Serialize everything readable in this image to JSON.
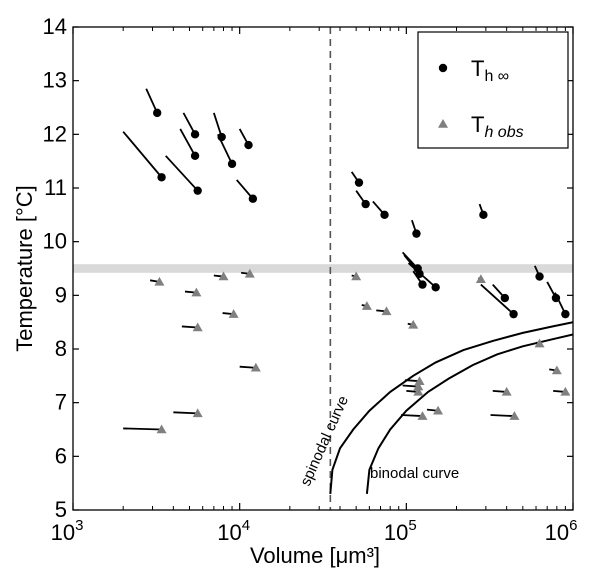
{
  "chart_data": {
    "type": "scatter",
    "xscale": "log",
    "xlim": [
      1000,
      1000000
    ],
    "ylim": [
      5,
      14
    ],
    "xlabel": "Volume [μm³]",
    "ylabel": "Temperature [°C]",
    "xticks": [
      1000,
      10000,
      100000,
      1000000
    ],
    "xtick_labels": [
      {
        "base": "10",
        "exp": "3"
      },
      {
        "base": "10",
        "exp": "4"
      },
      {
        "base": "10",
        "exp": "5"
      },
      {
        "base": "10",
        "exp": "6"
      }
    ],
    "yticks": [
      5,
      6,
      7,
      8,
      9,
      10,
      11,
      12,
      13,
      14
    ],
    "ytick_labels": [
      "5",
      "6",
      "7",
      "8",
      "9",
      "10",
      "11",
      "12",
      "13",
      "14"
    ],
    "grid": false,
    "legend_position": "top-right",
    "legend": [
      {
        "marker": "circle",
        "color": "#000000",
        "text": "T",
        "sub": "h ∞"
      },
      {
        "marker": "triangle",
        "color": "#808080",
        "text": "T",
        "sub": "h obs"
      }
    ],
    "band": {
      "y_min": 9.42,
      "y_max": 9.58,
      "color": "#d9d9d9"
    },
    "vline": {
      "x": 35000,
      "style": "dashed",
      "color": "#555555"
    },
    "curves": [
      {
        "name": "spinodal curve",
        "label": "spinodal curve",
        "points": [
          [
            35000,
            5.3
          ],
          [
            36000,
            5.75
          ],
          [
            40000,
            6.15
          ],
          [
            48000,
            6.5
          ],
          [
            60000,
            6.85
          ],
          [
            80000,
            7.2
          ],
          [
            110000,
            7.5
          ],
          [
            150000,
            7.75
          ],
          [
            220000,
            7.98
          ],
          [
            330000,
            8.15
          ],
          [
            500000,
            8.3
          ],
          [
            750000,
            8.42
          ],
          [
            1000000,
            8.5
          ]
        ]
      },
      {
        "name": "binodal curve",
        "label": "binodal curve",
        "points": [
          [
            58000,
            5.3
          ],
          [
            60000,
            5.75
          ],
          [
            68000,
            6.15
          ],
          [
            80000,
            6.5
          ],
          [
            100000,
            6.85
          ],
          [
            135000,
            7.2
          ],
          [
            180000,
            7.45
          ],
          [
            250000,
            7.7
          ],
          [
            350000,
            7.9
          ],
          [
            500000,
            8.05
          ],
          [
            750000,
            8.18
          ],
          [
            1000000,
            8.27
          ]
        ]
      }
    ],
    "series": [
      {
        "name": "T h∞",
        "marker": "circle",
        "color": "#000000",
        "points": [
          {
            "x": 3200,
            "y": 12.4,
            "tx": 2750,
            "ty": 12.85
          },
          {
            "x": 3400,
            "y": 11.2,
            "tx": 2000,
            "ty": 12.05
          },
          {
            "x": 5400,
            "y": 12.0,
            "tx": 4600,
            "ty": 12.4
          },
          {
            "x": 5400,
            "y": 11.6,
            "tx": 4400,
            "ty": 12.1
          },
          {
            "x": 5600,
            "y": 10.95,
            "tx": 3600,
            "ty": 11.6
          },
          {
            "x": 7800,
            "y": 11.95,
            "tx": 7000,
            "ty": 12.4
          },
          {
            "x": 9000,
            "y": 11.45,
            "tx": 7400,
            "ty": 12.0
          },
          {
            "x": 11300,
            "y": 11.8,
            "tx": 10000,
            "ty": 12.1
          },
          {
            "x": 12000,
            "y": 10.8,
            "tx": 9600,
            "ty": 11.15
          },
          {
            "x": 52000,
            "y": 11.1,
            "tx": 47000,
            "ty": 11.3
          },
          {
            "x": 57000,
            "y": 10.7,
            "tx": 50000,
            "ty": 10.95
          },
          {
            "x": 74000,
            "y": 10.5,
            "tx": 63000,
            "ty": 10.75
          },
          {
            "x": 115000,
            "y": 10.15,
            "tx": 108000,
            "ty": 10.4
          },
          {
            "x": 117000,
            "y": 9.5,
            "tx": 95000,
            "ty": 9.8
          },
          {
            "x": 120000,
            "y": 9.4,
            "tx": 97000,
            "ty": 9.75
          },
          {
            "x": 125000,
            "y": 9.2,
            "tx": 110000,
            "ty": 9.45
          },
          {
            "x": 150000,
            "y": 9.15,
            "tx": 103000,
            "ty": 9.6
          },
          {
            "x": 290000,
            "y": 10.5,
            "tx": 275000,
            "ty": 10.7
          },
          {
            "x": 390000,
            "y": 8.95,
            "tx": 330000,
            "ty": 9.2
          },
          {
            "x": 440000,
            "y": 8.65,
            "tx": 280000,
            "ty": 9.2
          },
          {
            "x": 630000,
            "y": 9.35,
            "tx": 590000,
            "ty": 9.55
          },
          {
            "x": 790000,
            "y": 8.95,
            "tx": 700000,
            "ty": 9.25
          },
          {
            "x": 900000,
            "y": 8.65,
            "tx": 780000,
            "ty": 9.05
          }
        ]
      },
      {
        "name": "T h obs",
        "marker": "triangle",
        "color": "#808080",
        "points": [
          {
            "x": 3300,
            "y": 9.25,
            "tx": 2900,
            "ty": 9.28
          },
          {
            "x": 3400,
            "y": 6.5,
            "tx": 2000,
            "ty": 6.52
          },
          {
            "x": 5500,
            "y": 9.05,
            "tx": 4700,
            "ty": 9.07
          },
          {
            "x": 5600,
            "y": 8.4,
            "tx": 4500,
            "ty": 8.42
          },
          {
            "x": 5600,
            "y": 6.8,
            "tx": 4000,
            "ty": 6.82
          },
          {
            "x": 8000,
            "y": 9.35,
            "tx": 7000,
            "ty": 9.37
          },
          {
            "x": 9200,
            "y": 8.65,
            "tx": 7900,
            "ty": 8.67
          },
          {
            "x": 11500,
            "y": 9.4,
            "tx": 10200,
            "ty": 9.42
          },
          {
            "x": 12500,
            "y": 7.65,
            "tx": 10000,
            "ty": 7.67
          },
          {
            "x": 50000,
            "y": 9.35,
            "tx": 47000,
            "ty": 9.37
          },
          {
            "x": 58000,
            "y": 8.8,
            "tx": 54000,
            "ty": 8.82
          },
          {
            "x": 76000,
            "y": 8.7,
            "tx": 66000,
            "ty": 8.72
          },
          {
            "x": 110000,
            "y": 8.45,
            "tx": 102000,
            "ty": 8.47
          },
          {
            "x": 118000,
            "y": 7.3,
            "tx": 95000,
            "ty": 7.32
          },
          {
            "x": 120000,
            "y": 7.4,
            "tx": 98000,
            "ty": 7.42
          },
          {
            "x": 118000,
            "y": 7.2,
            "tx": 100000,
            "ty": 7.22
          },
          {
            "x": 125000,
            "y": 6.75,
            "tx": 93000,
            "ty": 6.77
          },
          {
            "x": 155000,
            "y": 6.85,
            "tx": 133000,
            "ty": 6.87
          },
          {
            "x": 280000,
            "y": 9.3,
            "tx": 270000,
            "ty": 9.32
          },
          {
            "x": 400000,
            "y": 7.2,
            "tx": 330000,
            "ty": 7.22
          },
          {
            "x": 445000,
            "y": 6.75,
            "tx": 320000,
            "ty": 6.77
          },
          {
            "x": 630000,
            "y": 8.1,
            "tx": 600000,
            "ty": 8.12
          },
          {
            "x": 800000,
            "y": 7.6,
            "tx": 720000,
            "ty": 7.62
          },
          {
            "x": 900000,
            "y": 7.2,
            "tx": 760000,
            "ty": 7.22
          }
        ]
      }
    ]
  }
}
